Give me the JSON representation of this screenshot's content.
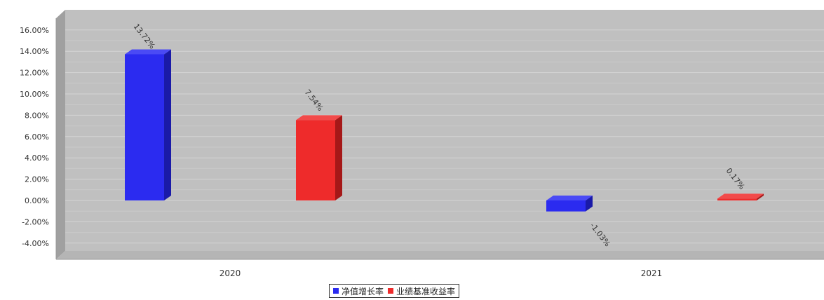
{
  "chart_data": {
    "type": "bar",
    "title": "",
    "xlabel": "",
    "ylabel": "",
    "categories": [
      "2020",
      "2021"
    ],
    "series": [
      {
        "name": "净值增长率",
        "values": [
          13.72,
          -1.03
        ],
        "color": "#2b2bf0",
        "labels": [
          "13.72%",
          "-1.03%"
        ]
      },
      {
        "name": "业绩基准收益率",
        "values": [
          7.54,
          0.17
        ],
        "color": "#ee2b2b",
        "labels": [
          "7.54%",
          "0.17%"
        ]
      }
    ],
    "ylim": [
      -4,
      16
    ],
    "yticks": [
      {
        "value": 16,
        "label": "16.00%"
      },
      {
        "value": 14,
        "label": "14.00%"
      },
      {
        "value": 12,
        "label": "12.00%"
      },
      {
        "value": 10,
        "label": "10.00%"
      },
      {
        "value": 8,
        "label": "8.00%"
      },
      {
        "value": 6,
        "label": "6.00%"
      },
      {
        "value": 4,
        "label": "4.00%"
      },
      {
        "value": 2,
        "label": "2.00%"
      },
      {
        "value": 0,
        "label": "0.00%"
      },
      {
        "value": -2,
        "label": "-2.00%"
      },
      {
        "value": -4,
        "label": "-4.00%"
      }
    ],
    "grid": true,
    "legend_position": "bottom-center",
    "background_color": "#c0c0c0"
  }
}
